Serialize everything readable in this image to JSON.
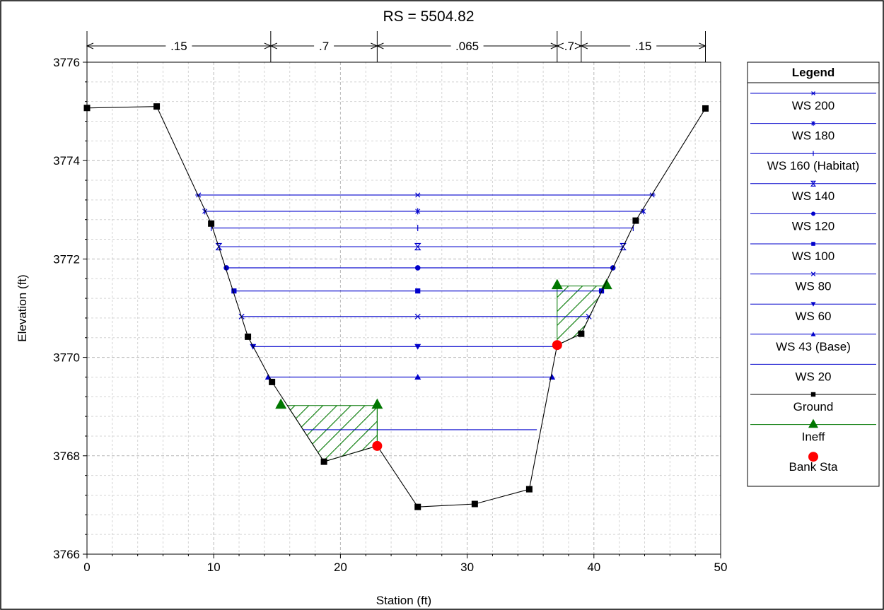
{
  "chart_data": {
    "type": "line",
    "title": "RS = 5504.82",
    "xlabel": "Station (ft)",
    "ylabel": "Elevation (ft)",
    "xlim": [
      0,
      50
    ],
    "ylim": [
      3766,
      3776
    ],
    "x_ticks": [
      0,
      10,
      20,
      30,
      40,
      50
    ],
    "x_tick_labels": [
      "0",
      "10",
      "20",
      "30",
      "40",
      "50"
    ],
    "y_ticks": [
      3766,
      3768,
      3770,
      3772,
      3774,
      3776
    ],
    "y_tick_labels": [
      "3766",
      "3768",
      "3770",
      "3772",
      "3774",
      "3776"
    ],
    "grid": true,
    "legend": {
      "title": "Legend",
      "position": "right",
      "entries": [
        {
          "name": "WS 200",
          "color": "#0000cc",
          "marker": "asterisk"
        },
        {
          "name": "WS 180",
          "color": "#0000cc",
          "marker": "star"
        },
        {
          "name": "WS 160 (Habitat)",
          "color": "#0000cc",
          "marker": "bar"
        },
        {
          "name": "WS 140",
          "color": "#0000cc",
          "marker": "hourglass"
        },
        {
          "name": "WS 120",
          "color": "#0000cc",
          "marker": "circle"
        },
        {
          "name": "WS 100",
          "color": "#0000cc",
          "marker": "square"
        },
        {
          "name": "WS 80",
          "color": "#0000cc",
          "marker": "x"
        },
        {
          "name": "WS 60",
          "color": "#0000cc",
          "marker": "triangle-down"
        },
        {
          "name": "WS 43 (Base)",
          "color": "#0000cc",
          "marker": "triangle-up"
        },
        {
          "name": "WS 20",
          "color": "#0000cc",
          "marker": "none"
        },
        {
          "name": "Ground",
          "color": "#000000",
          "marker": "square"
        },
        {
          "name": "Ineff",
          "color": "#007700",
          "marker": "triangle-up"
        },
        {
          "name": "Bank Sta",
          "color": "#ff0000",
          "marker": "circle"
        }
      ]
    },
    "manning_n": [
      {
        "label": ".15",
        "from": 0,
        "to": 14.5
      },
      {
        "label": ".7",
        "from": 14.5,
        "to": 22.9
      },
      {
        "label": ".065",
        "from": 22.9,
        "to": 37.1
      },
      {
        "label": ".7",
        "from": 37.1,
        "to": 39.0
      },
      {
        "label": ".15",
        "from": 39.0,
        "to": 48.8
      }
    ],
    "ground": {
      "x": [
        0,
        5.5,
        9.8,
        12.7,
        14.6,
        18.7,
        22.9,
        26.1,
        30.6,
        34.9,
        37.1,
        39.0,
        43.3,
        48.8
      ],
      "y": [
        3775.07,
        3775.1,
        3772.72,
        3770.42,
        3769.5,
        3767.88,
        3768.2,
        3766.96,
        3767.02,
        3767.32,
        3770.25,
        3770.48,
        3772.78,
        3775.06
      ]
    },
    "water_surfaces": [
      {
        "name": "WS 200",
        "elevation": 3773.3,
        "left": 8.8,
        "right": 44.6,
        "marker": "asterisk"
      },
      {
        "name": "WS 180",
        "elevation": 3772.97,
        "left": 9.3,
        "right": 43.9,
        "marker": "star"
      },
      {
        "name": "WS 160 (Habitat)",
        "elevation": 3772.63,
        "left": 9.8,
        "right": 43.1,
        "marker": "bar"
      },
      {
        "name": "WS 140",
        "elevation": 3772.25,
        "left": 10.4,
        "right": 42.3,
        "marker": "hourglass"
      },
      {
        "name": "WS 120",
        "elevation": 3771.82,
        "left": 11.0,
        "right": 41.5,
        "marker": "circle"
      },
      {
        "name": "WS 100",
        "elevation": 3771.35,
        "left": 11.6,
        "right": 40.6,
        "marker": "square"
      },
      {
        "name": "WS 80",
        "elevation": 3770.83,
        "left": 12.2,
        "right": 39.6,
        "marker": "x"
      },
      {
        "name": "WS 60",
        "elevation": 3770.22,
        "left": 13.1,
        "right": 37.2,
        "marker": "triangle-down"
      },
      {
        "name": "WS 43 (Base)",
        "elevation": 3769.6,
        "left": 14.3,
        "right": 36.7,
        "marker": "triangle-up"
      },
      {
        "name": "WS 20",
        "elevation": 3768.53,
        "left": 17.0,
        "right": 35.5,
        "marker": "none"
      }
    ],
    "ineffective_areas": [
      {
        "elevation": 3769.02,
        "from": 15.3,
        "to": 22.9
      },
      {
        "elevation": 3771.45,
        "from": 37.1,
        "to": 41.0
      }
    ],
    "bank_stations": [
      {
        "x": 22.9,
        "y": 3768.2
      },
      {
        "x": 37.1,
        "y": 3770.25
      }
    ]
  }
}
